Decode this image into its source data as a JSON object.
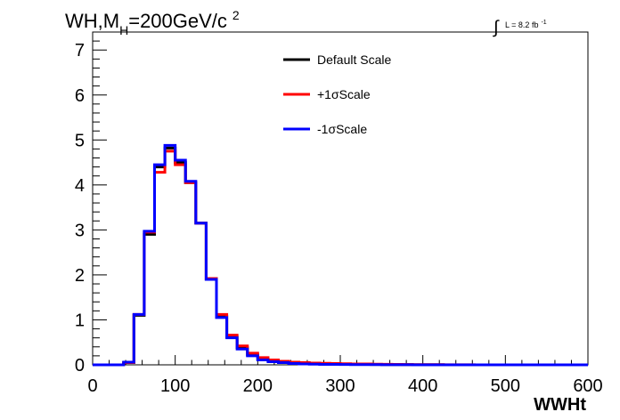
{
  "chart_data": {
    "type": "line",
    "title_main": "WH,M",
    "title_sub": "H",
    "title_rest": "=200GeV/c",
    "title_sup": "2",
    "lumi_integral": "∫",
    "lumi_text": "L = 8.2 fb",
    "lumi_sup": "-1",
    "xlabel": "WWHt",
    "ylabel": "",
    "xlim": [
      0,
      600
    ],
    "ylim": [
      0,
      7.4
    ],
    "xticks": [
      0,
      100,
      200,
      300,
      400,
      500,
      600
    ],
    "yticks": [
      0,
      1,
      2,
      3,
      4,
      5,
      6,
      7
    ],
    "grid": false,
    "legend_position": "top-center",
    "bin_width": 12.5,
    "bin_edges": [
      0,
      12.5,
      25,
      37.5,
      50,
      62.5,
      75,
      87.5,
      100,
      112.5,
      125,
      137.5,
      150,
      162.5,
      175,
      187.5,
      200,
      212.5,
      225,
      237.5,
      250,
      262.5,
      275,
      287.5,
      300,
      312.5,
      325,
      337.5,
      350,
      362.5,
      375,
      387.5,
      400,
      412.5,
      425,
      437.5,
      450,
      462.5,
      475,
      487.5,
      500,
      512.5,
      525,
      537.5,
      550,
      562.5,
      575,
      587.5,
      600
    ],
    "series": [
      {
        "name": "Default Scale",
        "color": "#000000",
        "values": [
          0,
          0,
          0,
          0.05,
          1.1,
          2.9,
          4.4,
          4.82,
          4.5,
          4.05,
          3.15,
          1.9,
          1.08,
          0.62,
          0.38,
          0.22,
          0.13,
          0.09,
          0.06,
          0.04,
          0.03,
          0.025,
          0.02,
          0.015,
          0.01,
          0.01,
          0.01,
          0.008,
          0.006,
          0.005,
          0.004,
          0.003,
          0.002,
          0.002,
          0.001,
          0.001,
          0.001,
          0,
          0,
          0,
          0,
          0,
          0,
          0,
          0,
          0,
          0,
          0
        ]
      },
      {
        "name": "+1σScale",
        "color": "#ff0000",
        "values": [
          0,
          0,
          0,
          0.05,
          1.12,
          2.95,
          4.28,
          4.75,
          4.45,
          4.05,
          3.15,
          1.92,
          1.12,
          0.66,
          0.42,
          0.26,
          0.16,
          0.11,
          0.08,
          0.06,
          0.05,
          0.04,
          0.035,
          0.03,
          0.025,
          0.02,
          0.02,
          0.015,
          0.012,
          0.01,
          0.008,
          0.006,
          0.005,
          0.004,
          0.003,
          0.002,
          0.002,
          0.001,
          0.001,
          0,
          0,
          0,
          0,
          0,
          0,
          0,
          0,
          0
        ]
      },
      {
        "name": "-1σScale",
        "color": "#0000ff",
        "values": [
          0,
          0,
          0,
          0.06,
          1.12,
          2.97,
          4.45,
          4.88,
          4.55,
          4.08,
          3.15,
          1.9,
          1.05,
          0.6,
          0.35,
          0.2,
          0.11,
          0.07,
          0.05,
          0.03,
          0.02,
          0.015,
          0.01,
          0.01,
          0.008,
          0.006,
          0.005,
          0.004,
          0.003,
          0.002,
          0.002,
          0.001,
          0.001,
          0,
          0,
          0,
          0,
          0,
          0,
          0,
          0,
          0,
          0,
          0,
          0,
          0,
          0,
          0
        ]
      }
    ]
  }
}
